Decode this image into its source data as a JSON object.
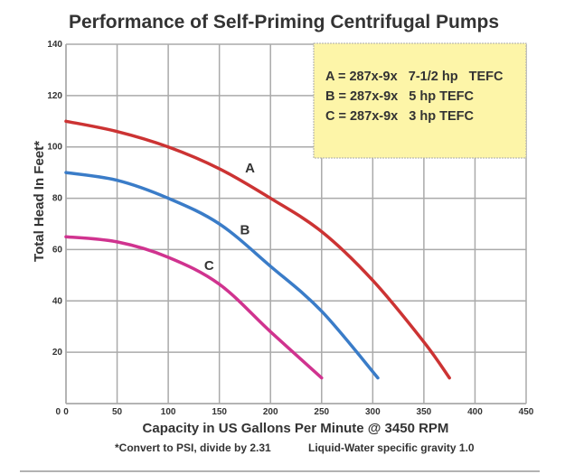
{
  "chart_data": {
    "type": "line",
    "title": "Performance of Self-Priming Centrifugal Pumps",
    "xlabel": "Capacity in US Gallons Per Minute @ 3450 RPM",
    "ylabel": "Total Head In Feet*",
    "xlim": [
      0,
      450
    ],
    "ylim": [
      0,
      140
    ],
    "xticks": [
      0,
      50,
      100,
      150,
      200,
      250,
      300,
      350,
      400,
      450
    ],
    "yticks": [
      0,
      20,
      40,
      60,
      80,
      100,
      120,
      140
    ],
    "xtick_labels": [
      "0",
      "50",
      "100",
      "150",
      "200",
      "250",
      "300",
      "350",
      "400",
      "450"
    ],
    "ytick_labels": [
      "0",
      "20",
      "40",
      "60",
      "80",
      "100",
      "120",
      "140"
    ],
    "grid": true,
    "legend_position": "top-right",
    "legend": [
      {
        "key": "A",
        "text": "A = 287x-9x   7-1/2 hp   TEFC"
      },
      {
        "key": "B",
        "text": "B = 287x-9x   5 hp TEFC"
      },
      {
        "key": "C",
        "text": "C = 287x-9x   3 hp TEFC"
      }
    ],
    "series": [
      {
        "name": "A",
        "color": "#cc3333",
        "label_at": [
          180,
          90
        ],
        "x": [
          0,
          50,
          100,
          150,
          200,
          250,
          300,
          350,
          375
        ],
        "y": [
          110,
          106,
          100,
          91.5,
          80,
          67,
          48,
          24,
          10
        ]
      },
      {
        "name": "B",
        "color": "#3a7cc8",
        "label_at": [
          175,
          66
        ],
        "x": [
          0,
          50,
          100,
          150,
          200,
          250,
          305
        ],
        "y": [
          90,
          87,
          80,
          70,
          53.5,
          36,
          10
        ]
      },
      {
        "name": "C",
        "color": "#d0338f",
        "label_at": [
          140,
          52
        ],
        "x": [
          0,
          50,
          100,
          150,
          200,
          250
        ],
        "y": [
          65,
          63,
          57,
          46.5,
          28,
          10
        ]
      }
    ],
    "footnotes": [
      "*Convert to PSI, divide by 2.31",
      "Liquid-Water specific gravity 1.0"
    ]
  },
  "colors": {
    "grid": "#aaaaaa",
    "legend_bg": "#fdf5a8",
    "legend_border": "#aaaaaa",
    "divider": "#999999"
  }
}
